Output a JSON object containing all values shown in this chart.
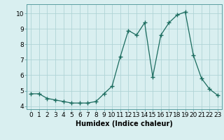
{
  "x": [
    0,
    1,
    2,
    3,
    4,
    5,
    6,
    7,
    8,
    9,
    10,
    11,
    12,
    13,
    14,
    15,
    16,
    17,
    18,
    19,
    20,
    21,
    22,
    23
  ],
  "y": [
    4.8,
    4.8,
    4.5,
    4.4,
    4.3,
    4.2,
    4.2,
    4.2,
    4.3,
    4.8,
    5.3,
    7.2,
    8.9,
    8.6,
    9.4,
    5.9,
    8.6,
    9.4,
    9.9,
    10.1,
    7.3,
    5.8,
    5.1,
    4.7
  ],
  "line_color": "#1a6b5e",
  "marker": "+",
  "marker_size": 4,
  "bg_color": "#d9eff0",
  "grid_color": "#b0d4d6",
  "xlabel": "Humidex (Indice chaleur)",
  "ylim": [
    3.8,
    10.6
  ],
  "xlim": [
    -0.5,
    23.5
  ],
  "yticks": [
    4,
    5,
    6,
    7,
    8,
    9,
    10
  ],
  "xticks": [
    0,
    1,
    2,
    3,
    4,
    5,
    6,
    7,
    8,
    9,
    10,
    11,
    12,
    13,
    14,
    15,
    16,
    17,
    18,
    19,
    20,
    21,
    22,
    23
  ],
  "xtick_labels": [
    "0",
    "1",
    "2",
    "3",
    "4",
    "5",
    "6",
    "7",
    "8",
    "9",
    "10",
    "11",
    "12",
    "13",
    "14",
    "15",
    "16",
    "17",
    "18",
    "19",
    "20",
    "21",
    "22",
    "23"
  ],
  "xlabel_fontsize": 7,
  "tick_fontsize": 6.5
}
